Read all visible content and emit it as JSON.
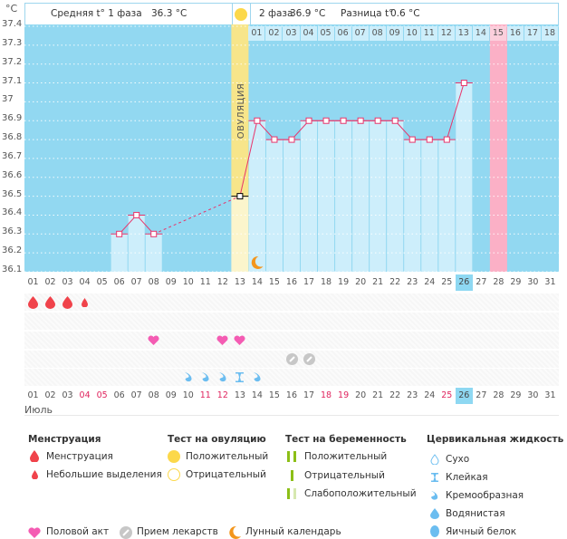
{
  "header": {
    "phase1_label": "Средняя t° 1 фаза",
    "phase1_value": "36.3 °C",
    "phase2_label": "2 фаза",
    "phase2_value": "36.9 °C",
    "diff_label": "Разница t°",
    "diff_value": "0.6 °C"
  },
  "unit": "°C",
  "ovulation_label": "ОВУЛЯЦИЯ",
  "month": "Июль",
  "colors": {
    "plot_bg": "#92d8f1",
    "bar_fill": "#cdeefb",
    "ovulation": "#f7e58a",
    "ovulation_low": "#fbf5cc",
    "expected_period": "#fbb0c6",
    "line": "#e8356b",
    "today": "#8ed8f2",
    "menstruation": "#f0434b",
    "intercourse": "#f45cb3",
    "medication": "#c7c7c7",
    "moon": "#f3961c",
    "ovulation_test": "#fcd84a",
    "pregnancy_test": "#8cbf17",
    "cervical": "#6bbdf0"
  },
  "chart_data": {
    "type": "line",
    "title": "",
    "xlabel": "Июль",
    "ylabel": "°C",
    "ylim": [
      36.1,
      37.4
    ],
    "yticks": [
      "37.4",
      "37.3",
      "37.2",
      "37.1",
      "37",
      "36.9",
      "36.8",
      "36.7",
      "36.6",
      "36.5",
      "36.4",
      "36.3",
      "36.2",
      "36.1"
    ],
    "days": [
      "01",
      "02",
      "03",
      "04",
      "05",
      "06",
      "07",
      "08",
      "09",
      "10",
      "11",
      "12",
      "13",
      "14",
      "15",
      "16",
      "17",
      "18",
      "19",
      "20",
      "21",
      "22",
      "23",
      "24",
      "25",
      "26",
      "27",
      "28",
      "29",
      "30",
      "31"
    ],
    "temperatures": [
      null,
      null,
      null,
      null,
      null,
      36.3,
      36.4,
      36.3,
      null,
      null,
      null,
      null,
      36.5,
      36.9,
      36.8,
      36.8,
      36.9,
      36.9,
      36.9,
      36.9,
      36.9,
      36.9,
      36.8,
      36.8,
      36.8,
      37.1,
      null,
      null,
      null,
      null,
      null
    ],
    "ovulation_day": 13,
    "phase2_days": [
      "01",
      "02",
      "03",
      "04",
      "05",
      "06",
      "07",
      "08",
      "09",
      "10",
      "11",
      "12",
      "13",
      "14",
      "15",
      "16",
      "17",
      "18"
    ],
    "phase2_start_day": 14,
    "expected_period_day": 28,
    "today": 26,
    "bottom_day_colors_red": [
      4,
      5,
      11,
      12,
      18,
      19,
      25
    ],
    "markers": {
      "menstruation": [
        1,
        2,
        3
      ],
      "light_spotting": [
        4
      ],
      "intercourse": [
        8,
        12,
        13
      ],
      "medication": [
        16,
        17
      ],
      "creamy": [
        10,
        11,
        12,
        14
      ],
      "sticky": [
        13
      ],
      "moon": [
        14
      ],
      "ovulation_test_positive": [
        13
      ]
    }
  },
  "legend": {
    "menstruation": {
      "title": "Менструация",
      "items": [
        "Менструация",
        "Небольшие выделения"
      ]
    },
    "ovulation_test": {
      "title": "Тест на овуляцию",
      "items": [
        "Положительный",
        "Отрицательный"
      ]
    },
    "pregnancy_test": {
      "title": "Тест на беременность",
      "items": [
        "Положительный",
        "Отрицательный",
        "Слабоположительный"
      ]
    },
    "cervical": {
      "title": "Цервикальная жидкость",
      "items": [
        "Сухо",
        "Клейкая",
        "Кремообразная",
        "Водянистая",
        "Яичный белок"
      ]
    },
    "other": [
      "Половой акт",
      "Прием лекарств",
      "Лунный календарь"
    ]
  }
}
